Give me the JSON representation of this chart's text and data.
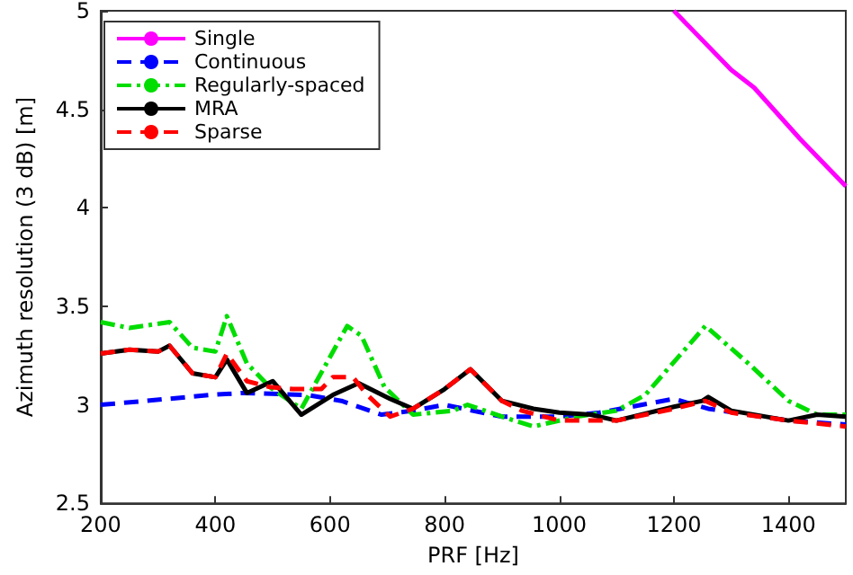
{
  "chart_data": {
    "type": "line",
    "xlabel": "PRF [Hz]",
    "ylabel": "Azimuth resolution (3 dB) [m]",
    "xlim": [
      200,
      1500
    ],
    "xticks": [
      200,
      400,
      600,
      800,
      1000,
      1200,
      1400
    ],
    "ylim": [
      2.5,
      5
    ],
    "yticks": [
      2.5,
      3,
      3.5,
      4,
      4.5,
      5
    ],
    "legend": "top left",
    "grid": false,
    "series": [
      {
        "name": "Single",
        "color": "#ff00ff",
        "line_style": "solid",
        "x": [
          1200,
          1300,
          1340,
          1420,
          1500
        ],
        "values": [
          5.0,
          4.7,
          4.61,
          4.35,
          4.11
        ]
      },
      {
        "name": "Continuous",
        "color": "#0000ff",
        "line_style": "dashed",
        "x": [
          200,
          280,
          390,
          450,
          560,
          620,
          690,
          745,
          800,
          900,
          1000,
          1070,
          1200,
          1260,
          1400,
          1500
        ],
        "values": [
          3.0,
          3.02,
          3.05,
          3.06,
          3.05,
          3.02,
          2.95,
          2.97,
          3.0,
          2.94,
          2.94,
          2.96,
          3.03,
          2.98,
          2.92,
          2.9
        ]
      },
      {
        "name": "Regularly-spaced",
        "color": "#00dd00",
        "line_style": "dashdot",
        "x": [
          200,
          250,
          320,
          360,
          400,
          420,
          455,
          495,
          550,
          630,
          655,
          695,
          745,
          815,
          840,
          900,
          955,
          1030,
          1100,
          1150,
          1255,
          1330,
          1400,
          1450,
          1500
        ],
        "values": [
          3.42,
          3.39,
          3.42,
          3.29,
          3.27,
          3.45,
          3.21,
          3.09,
          2.98,
          3.4,
          3.35,
          3.09,
          2.95,
          2.97,
          3.0,
          2.94,
          2.89,
          2.94,
          2.97,
          3.05,
          3.4,
          3.21,
          3.02,
          2.95,
          2.95
        ]
      },
      {
        "name": "MRA",
        "color": "#000000",
        "line_style": "solid",
        "x": [
          200,
          250,
          300,
          320,
          360,
          400,
          420,
          455,
          500,
          550,
          605,
          650,
          705,
          745,
          800,
          845,
          900,
          955,
          1000,
          1055,
          1100,
          1200,
          1250,
          1260,
          1300,
          1400,
          1450,
          1500
        ],
        "values": [
          3.26,
          3.28,
          3.27,
          3.3,
          3.16,
          3.14,
          3.23,
          3.06,
          3.12,
          2.95,
          3.05,
          3.11,
          3.03,
          2.98,
          3.08,
          3.18,
          3.02,
          2.98,
          2.96,
          2.95,
          2.92,
          2.99,
          3.02,
          3.04,
          2.97,
          2.92,
          2.95,
          2.94
        ]
      },
      {
        "name": "Sparse",
        "color": "#ff0000",
        "line_style": "dashed",
        "x": [
          200,
          250,
          300,
          320,
          360,
          400,
          420,
          455,
          495,
          535,
          585,
          605,
          640,
          665,
          705,
          745,
          800,
          845,
          900,
          935,
          1000,
          1070,
          1100,
          1200,
          1255,
          1300,
          1400,
          1500
        ],
        "values": [
          3.26,
          3.28,
          3.27,
          3.3,
          3.16,
          3.14,
          3.26,
          3.12,
          3.09,
          3.08,
          3.08,
          3.14,
          3.14,
          3.05,
          2.94,
          2.98,
          3.08,
          3.18,
          3.02,
          2.97,
          2.92,
          2.92,
          2.92,
          2.98,
          3.02,
          2.96,
          2.92,
          2.89
        ]
      }
    ]
  }
}
